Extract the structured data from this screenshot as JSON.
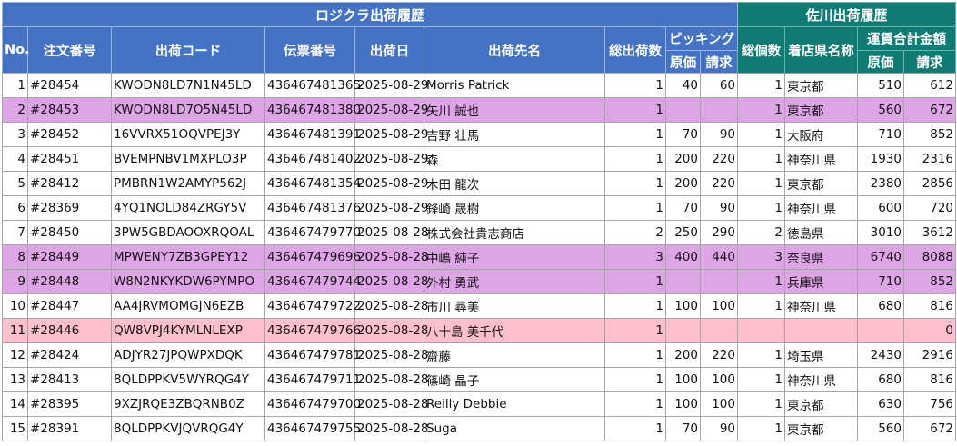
{
  "header": {
    "group_logi": "ロジクラ出荷履歴",
    "group_sagawa": "佐川出荷履歴",
    "no": "No.",
    "order_no": "注文番号",
    "ship_code": "出荷コード",
    "slip_no": "伝票番号",
    "ship_date": "出荷日",
    "destination": "出荷先名",
    "total_qty": "総出荷数",
    "picking": "ピッキング",
    "picking_cost": "原価",
    "picking_bill": "請求",
    "total_pieces": "総個数",
    "pref": "着店県名称",
    "freight": "運賃合計金額",
    "freight_cost": "原価",
    "freight_bill": "請求"
  },
  "colors": {
    "header_blue": "#4472c4",
    "header_green": "#0e7c73",
    "row_purple": "#dea5e6",
    "row_pink": "#ffbfcb"
  },
  "rows": [
    {
      "no": "1",
      "order": "#28454",
      "code": "KWODN8LD7N1N45LD",
      "slip": "436467481365",
      "date": "2025-08-29",
      "dest": "Morris Patrick",
      "qty": "1",
      "pcost": "40",
      "pbill": "60",
      "pieces": "1",
      "pref": "東京都",
      "fcost": "510",
      "fbill": "612",
      "style": ""
    },
    {
      "no": "2",
      "order": "#28453",
      "code": "KWODN8LD7O5N45LD",
      "slip": "436467481380",
      "date": "2025-08-29",
      "dest": "矢川 誠也",
      "qty": "1",
      "pcost": "",
      "pbill": "",
      "pieces": "1",
      "pref": "東京都",
      "fcost": "560",
      "fbill": "672",
      "style": "purple"
    },
    {
      "no": "3",
      "order": "#28452",
      "code": "16VVRX51OQVPEJ3Y",
      "slip": "436467481391",
      "date": "2025-08-29",
      "dest": "吉野 壮馬",
      "qty": "1",
      "pcost": "70",
      "pbill": "90",
      "pieces": "1",
      "pref": "大阪府",
      "fcost": "710",
      "fbill": "852",
      "style": ""
    },
    {
      "no": "4",
      "order": "#28451",
      "code": "BVEMPNBV1MXPLO3P",
      "slip": "436467481402",
      "date": "2025-08-29",
      "dest": "森",
      "qty": "1",
      "pcost": "200",
      "pbill": "220",
      "pieces": "1",
      "pref": "神奈川県",
      "fcost": "1930",
      "fbill": "2316",
      "style": ""
    },
    {
      "no": "5",
      "order": "#28412",
      "code": "PMBRN1W2AMYP562J",
      "slip": "436467481354",
      "date": "2025-08-29",
      "dest": "木田 龍次",
      "qty": "1",
      "pcost": "200",
      "pbill": "220",
      "pieces": "1",
      "pref": "東京都",
      "fcost": "2380",
      "fbill": "2856",
      "style": ""
    },
    {
      "no": "6",
      "order": "#28369",
      "code": "4YQ1NOLD84ZRGY5V",
      "slip": "436467481376",
      "date": "2025-08-29",
      "dest": "鋒崎 晟樹",
      "qty": "1",
      "pcost": "70",
      "pbill": "90",
      "pieces": "1",
      "pref": "神奈川県",
      "fcost": "600",
      "fbill": "720",
      "style": ""
    },
    {
      "no": "7",
      "order": "#28450",
      "code": "3PW5GBDAOOXRQOAL",
      "slip": "436467479770",
      "date": "2025-08-28",
      "dest": "株式会社貴志商店",
      "qty": "2",
      "pcost": "250",
      "pbill": "290",
      "pieces": "2",
      "pref": "徳島県",
      "fcost": "3010",
      "fbill": "3612",
      "style": ""
    },
    {
      "no": "8",
      "order": "#28449",
      "code": "MPWENY7ZB3GPEY12",
      "slip": "436467479696",
      "date": "2025-08-28",
      "dest": "中嶋 純子",
      "qty": "3",
      "pcost": "400",
      "pbill": "440",
      "pieces": "3",
      "pref": "奈良県",
      "fcost": "6740",
      "fbill": "8088",
      "style": "purple"
    },
    {
      "no": "9",
      "order": "#28448",
      "code": "W8N2NKYKDW6PYMPO",
      "slip": "436467479744",
      "date": "2025-08-28",
      "dest": "外村 勇武",
      "qty": "1",
      "pcost": "",
      "pbill": "",
      "pieces": "1",
      "pref": "兵庫県",
      "fcost": "710",
      "fbill": "852",
      "style": "purple"
    },
    {
      "no": "10",
      "order": "#28447",
      "code": "AA4JRVMOMGJN6EZB",
      "slip": "436467479722",
      "date": "2025-08-28",
      "dest": "市川 尋美",
      "qty": "1",
      "pcost": "100",
      "pbill": "100",
      "pieces": "1",
      "pref": "神奈川県",
      "fcost": "680",
      "fbill": "816",
      "style": ""
    },
    {
      "no": "11",
      "order": "#28446",
      "code": "QW8VPJ4KYMLNLEXP",
      "slip": "436467479766",
      "date": "2025-08-28",
      "dest": "八十島 美千代",
      "qty": "1",
      "pcost": "",
      "pbill": "",
      "pieces": "",
      "pref": "",
      "fcost": "",
      "fbill": "0",
      "style": "pink"
    },
    {
      "no": "12",
      "order": "#28424",
      "code": "ADJYR27JPQWPXDQK",
      "slip": "436467479781",
      "date": "2025-08-28",
      "dest": "齋藤",
      "qty": "1",
      "pcost": "200",
      "pbill": "220",
      "pieces": "1",
      "pref": "埼玉県",
      "fcost": "2430",
      "fbill": "2916",
      "style": ""
    },
    {
      "no": "13",
      "order": "#28413",
      "code": "8QLDPPKV5WYRQG4Y",
      "slip": "436467479711",
      "date": "2025-08-28",
      "dest": "篠崎 晶子",
      "qty": "1",
      "pcost": "100",
      "pbill": "100",
      "pieces": "1",
      "pref": "神奈川県",
      "fcost": "680",
      "fbill": "816",
      "style": ""
    },
    {
      "no": "14",
      "order": "#28395",
      "code": "9XZJRQE3ZBQRNB0Z",
      "slip": "436467479700",
      "date": "2025-08-28",
      "dest": "Reilly Debbie",
      "qty": "1",
      "pcost": "100",
      "pbill": "100",
      "pieces": "1",
      "pref": "東京都",
      "fcost": "630",
      "fbill": "756",
      "style": ""
    },
    {
      "no": "15",
      "order": "#28391",
      "code": "8QLDPPKVJQVRQG4Y",
      "slip": "436467479755",
      "date": "2025-08-28",
      "dest": "Suga",
      "qty": "1",
      "pcost": "70",
      "pbill": "90",
      "pieces": "1",
      "pref": "東京都",
      "fcost": "560",
      "fbill": "672",
      "style": ""
    }
  ]
}
